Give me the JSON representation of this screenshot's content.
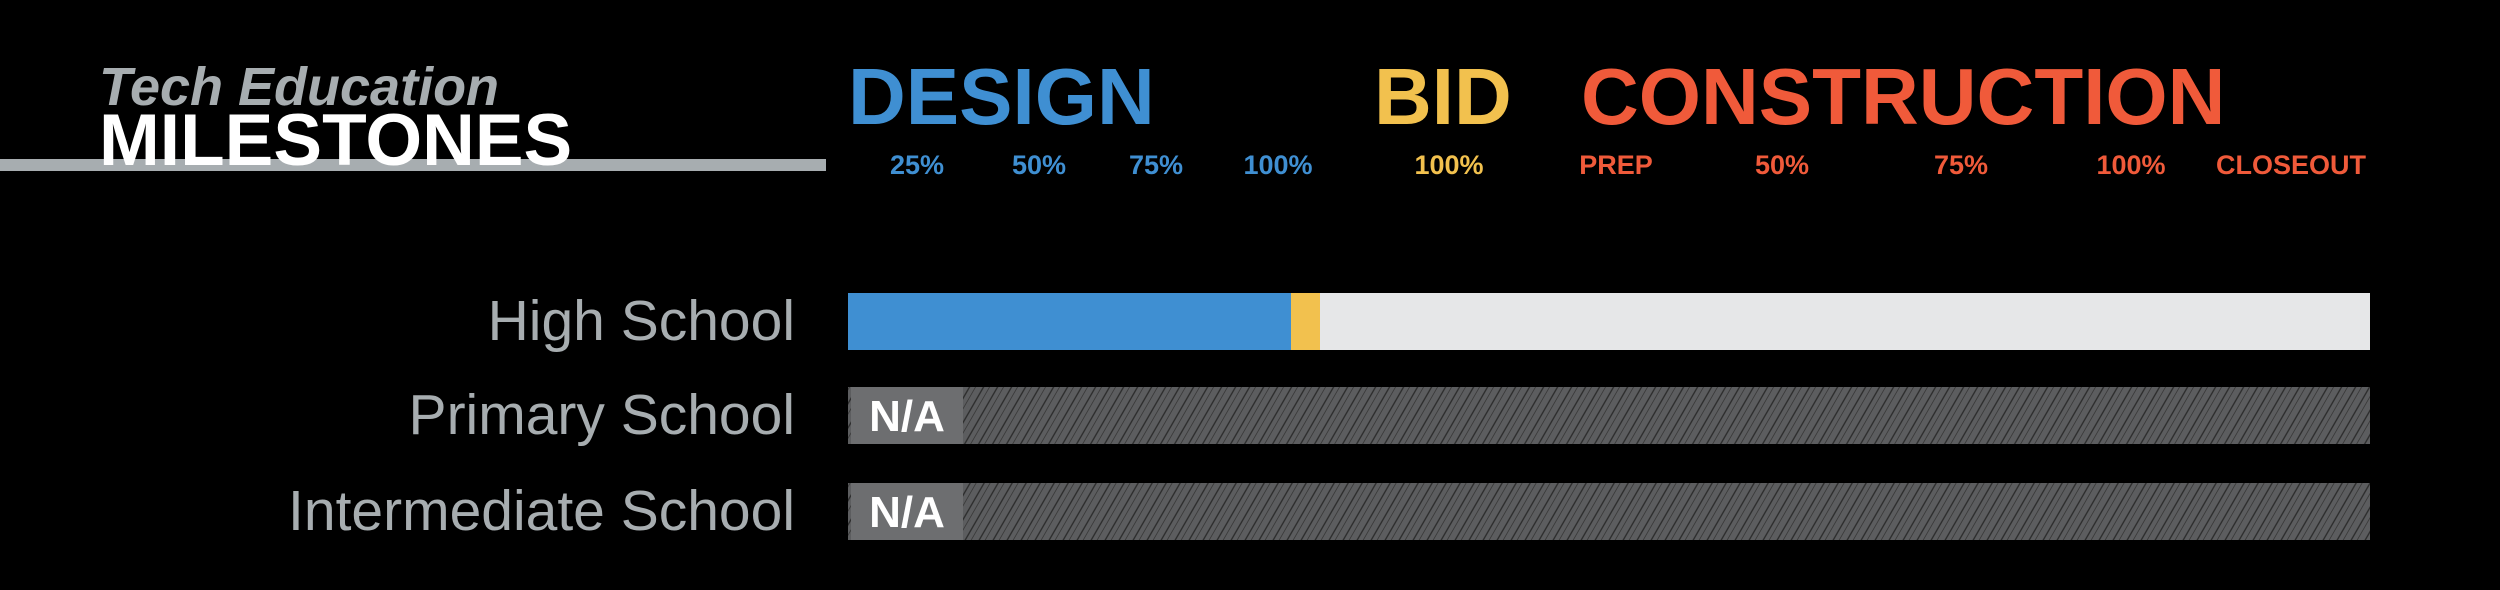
{
  "header": {
    "title": "Tech Education",
    "subtitle": "MILESTONES"
  },
  "phases": [
    {
      "name": "DESIGN",
      "color": "#3f8fd2",
      "milestones": [
        "25%",
        "50%",
        "75%",
        "100%"
      ]
    },
    {
      "name": "BID",
      "color": "#f2c14e",
      "milestones": [
        "100%"
      ]
    },
    {
      "name": "CONSTRUCTION",
      "color": "#f05a3a",
      "milestones": [
        "PREP",
        "50%",
        "75%",
        "100%",
        "CLOSEOUT"
      ]
    }
  ],
  "rows": [
    {
      "name": "High School"
    },
    {
      "name": "Primary School",
      "status": "N/A"
    },
    {
      "name": "Intermediate School",
      "status": "N/A"
    }
  ]
}
